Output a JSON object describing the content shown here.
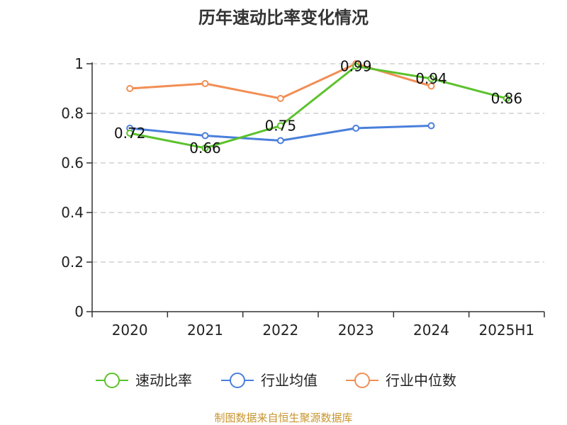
{
  "chart_data": {
    "type": "line",
    "title": "历年速动比率变化情况",
    "categories": [
      "2020",
      "2021",
      "2022",
      "2023",
      "2024",
      "2025H1"
    ],
    "ylim": [
      0,
      1
    ],
    "yticks": [
      "0",
      "0.2",
      "0.4",
      "0.6",
      "0.8",
      "1"
    ],
    "grid": true,
    "legend_position": "bottom",
    "series": [
      {
        "name": "速动比率",
        "color": "#5cc22e",
        "values": [
          0.72,
          0.66,
          0.75,
          0.99,
          0.94,
          0.86
        ],
        "labels": [
          "0.72",
          "0.66",
          "0.75",
          "0.99",
          "0.94",
          "0.86"
        ]
      },
      {
        "name": "行业均值",
        "color": "#4a7fdb",
        "values": [
          0.74,
          0.71,
          0.69,
          0.74,
          0.75,
          null
        ]
      },
      {
        "name": "行业中位数",
        "color": "#f28e54",
        "values": [
          0.9,
          0.92,
          0.86,
          1.0,
          0.91,
          null
        ]
      }
    ]
  },
  "source_text": "制图数据来自恒生聚源数据库",
  "source_color": "#c8952f"
}
